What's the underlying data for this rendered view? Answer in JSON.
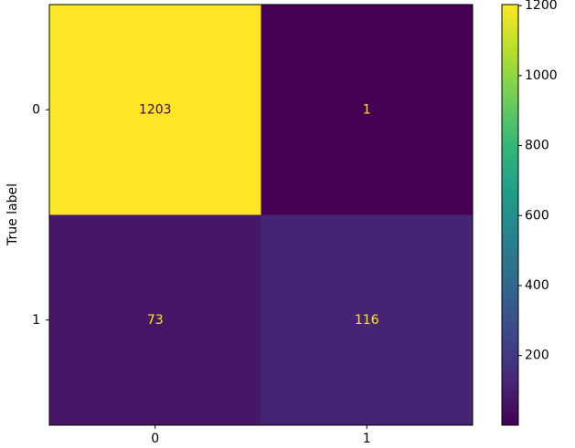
{
  "chart_data": {
    "type": "heatmap",
    "ylabel": "True label",
    "x_categories": [
      "0",
      "1"
    ],
    "y_categories": [
      "0",
      "1"
    ],
    "values": [
      [
        1203,
        1
      ],
      [
        73,
        116
      ]
    ],
    "colormap": "viridis",
    "clim": [
      1,
      1203
    ],
    "cticks": [
      200,
      400,
      600,
      800,
      1000,
      1200
    ]
  }
}
